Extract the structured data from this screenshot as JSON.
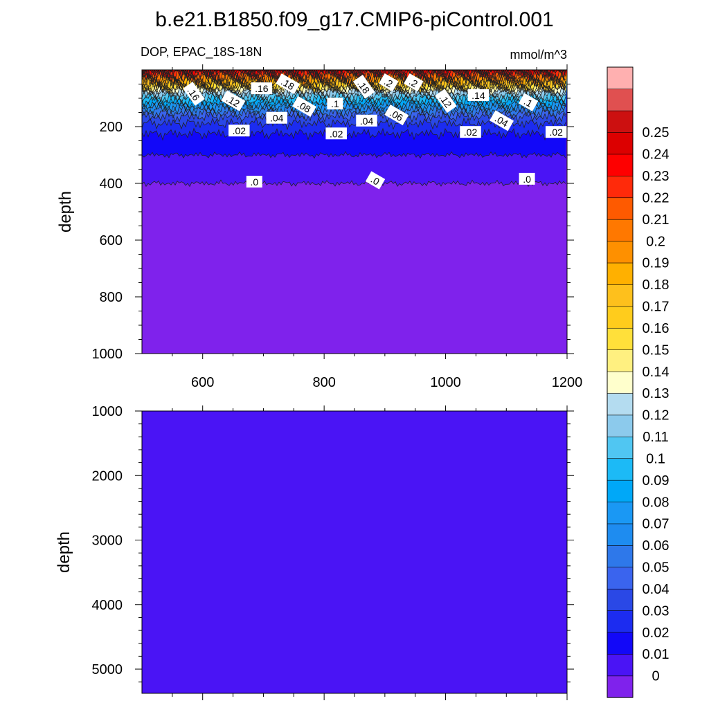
{
  "chart_data": {
    "type": "heatmap",
    "title": "b.e21.B1850.f09_g17.CMIP6-piControl.001",
    "colorbar": {
      "levels": [
        "0",
        "0.01",
        "0.02",
        "0.03",
        "0.04",
        "0.05",
        "0.06",
        "0.07",
        "0.08",
        "0.09",
        "0.1",
        "0.11",
        "0.12",
        "0.13",
        "0.14",
        "0.15",
        "0.16",
        "0.17",
        "0.18",
        "0.19",
        "0.2",
        "0.21",
        "0.22",
        "0.23",
        "0.24",
        "0.25"
      ],
      "colors": [
        "#7f22ec",
        "#4a14f5",
        "#1208f8",
        "#1c2cf0",
        "#2a48e6",
        "#3a64ee",
        "#2e78ea",
        "#1e8cf0",
        "#1a98f4",
        "#00a8f8",
        "#1cbaf6",
        "#50c6f2",
        "#8ccaec",
        "#b4dcf0",
        "#ffffcc",
        "#fff080",
        "#ffe03a",
        "#ffcc1c",
        "#fec01c",
        "#ffb000",
        "#fe9000",
        "#ff7800",
        "#fe5a00",
        "#ff2a0a",
        "#fe0000",
        "#dc0000",
        "#cc1010",
        "#e05050",
        "#ffb0b0"
      ]
    },
    "panels": [
      {
        "left_label": "DOP, EPAC_18S-18N",
        "right_label": "mmol/m^3",
        "ylabel": "depth",
        "xlim": [
          500,
          1200
        ],
        "ylim": [
          0,
          1000
        ],
        "xticks": [
          "600",
          "800",
          "1000",
          "1200"
        ],
        "yticks": [
          "200",
          "400",
          "600",
          "800",
          "1000"
        ],
        "profile": [
          [
            0,
            0.24
          ],
          [
            30,
            0.2
          ],
          [
            55,
            0.16
          ],
          [
            80,
            0.12
          ],
          [
            110,
            0.09
          ],
          [
            140,
            0.06
          ],
          [
            165,
            0.04
          ],
          [
            200,
            0.025
          ],
          [
            250,
            0.015
          ],
          [
            300,
            0.01
          ],
          [
            380,
            0.005
          ],
          [
            400,
            0.0
          ],
          [
            1000,
            0.0
          ]
        ],
        "contour_labels": [
          {
            "text": ".16",
            "x": 585,
            "y": 85
          },
          {
            "text": ".12",
            "x": 650,
            "y": 110
          },
          {
            "text": ".16",
            "x": 697,
            "y": 66
          },
          {
            "text": ".18",
            "x": 740,
            "y": 50
          },
          {
            "text": ".04",
            "x": 722,
            "y": 170
          },
          {
            "text": ".08",
            "x": 767,
            "y": 130
          },
          {
            "text": ".1",
            "x": 818,
            "y": 120
          },
          {
            "text": ".18",
            "x": 865,
            "y": 60
          },
          {
            "text": ".2",
            "x": 906,
            "y": 45
          },
          {
            "text": ".2",
            "x": 947,
            "y": 45
          },
          {
            "text": ".02",
            "x": 660,
            "y": 215
          },
          {
            "text": ".02",
            "x": 820,
            "y": 225
          },
          {
            "text": ".04",
            "x": 870,
            "y": 180
          },
          {
            "text": ".06",
            "x": 919,
            "y": 160
          },
          {
            "text": ".12",
            "x": 1000,
            "y": 110
          },
          {
            "text": ".14",
            "x": 1054,
            "y": 90
          },
          {
            "text": ".02",
            "x": 1041,
            "y": 220
          },
          {
            "text": ".04",
            "x": 1092,
            "y": 180
          },
          {
            "text": ".1",
            "x": 1136,
            "y": 115
          },
          {
            "text": ".02",
            "x": 1182,
            "y": 220
          },
          {
            "text": ".0",
            "x": 685,
            "y": 395
          },
          {
            "text": ".0",
            "x": 884,
            "y": 390
          },
          {
            "text": ".0",
            "x": 1134,
            "y": 385
          }
        ]
      },
      {
        "ylabel": "depth",
        "xlim": [
          500,
          1200
        ],
        "ylim": [
          1000,
          5375
        ],
        "yticks": [
          "1000",
          "2000",
          "3000",
          "4000",
          "5000"
        ],
        "value": 0.0
      }
    ]
  }
}
